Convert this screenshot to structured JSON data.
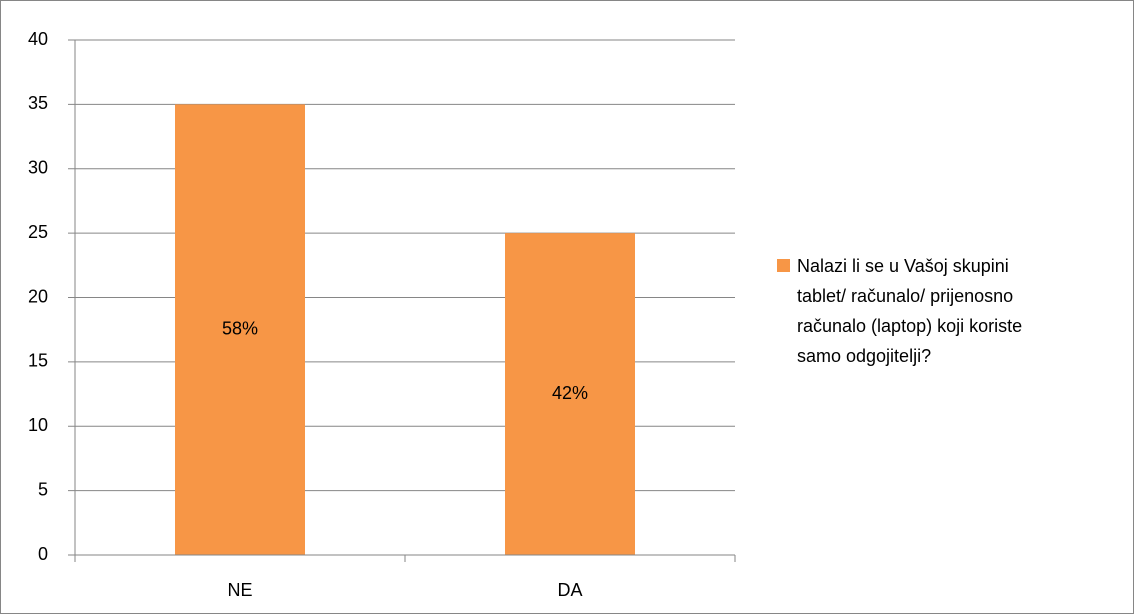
{
  "chart_data": {
    "type": "bar",
    "categories": [
      "NE",
      "DA"
    ],
    "series": [
      {
        "name": "Nalazi li se u Vašoj skupini tablet/ računalo/ prijenosno računalo (laptop) koji koriste samo odgojitelji?",
        "color": "#f79646",
        "values": [
          35,
          25
        ]
      }
    ],
    "annotations": [
      "58%",
      "42%"
    ],
    "ylim": [
      0,
      40
    ],
    "yticks": [
      0,
      5,
      10,
      15,
      20,
      25,
      30,
      35,
      40
    ],
    "grid": true,
    "legend": "right"
  }
}
